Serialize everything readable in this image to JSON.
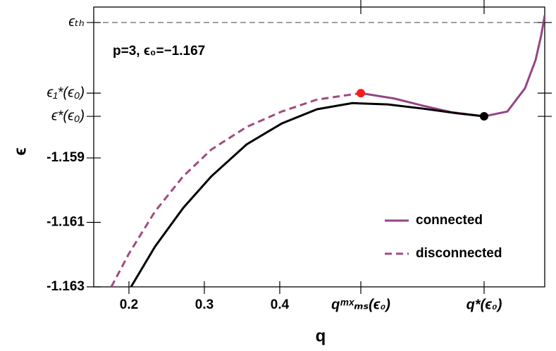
{
  "chart_data": {
    "type": "line",
    "annotation": "p=3, ϵ₀=−1.167",
    "x_label": "q",
    "y_label": "ϵ",
    "xlim": [
      0.1533,
      0.7514
    ],
    "ylim": [
      -1.163,
      -1.15432
    ],
    "xticks": [
      0.2,
      0.3,
      0.4,
      {
        "value": 0.5075,
        "label": "qᵐˣₘₛ(ϵ₀)"
      },
      {
        "value": 0.671,
        "label": "q*(ϵ₀)"
      }
    ],
    "yticks": [
      -1.163,
      -1.161,
      -1.159,
      {
        "value": -1.15771,
        "label": "ϵ*(ϵ₀)"
      },
      {
        "value": -1.15699,
        "label": "ϵ₁*(ϵ₀)"
      },
      {
        "value": -1.1548,
        "label": "ϵₜₕ"
      }
    ],
    "hline": -1.1548,
    "legend": "lower right",
    "series": [
      {
        "name": "connected",
        "color": "#934585",
        "dash": false,
        "x": [
          0.5075,
          0.5523,
          0.5897,
          0.6271,
          0.671,
          0.7019,
          0.7252,
          0.7393,
          0.7467,
          0.7514
        ],
        "values": [
          -1.15699,
          -1.15716,
          -1.15738,
          -1.15758,
          -1.15771,
          -1.15756,
          -1.15684,
          -1.15596,
          -1.1552,
          -1.15458
        ]
      },
      {
        "name": "disconnected",
        "color": "#a24a80",
        "dash": true,
        "x": [
          0.1766,
          0.2,
          0.2346,
          0.272,
          0.3093,
          0.3561,
          0.4028,
          0.4495,
          0.5075
        ],
        "values": [
          -1.163,
          -1.16197,
          -1.16066,
          -1.15957,
          -1.15874,
          -1.15804,
          -1.15756,
          -1.15719,
          -1.15699
        ]
      },
      {
        "color": "#000000",
        "dash": false,
        "x": [
          0.2028,
          0.2346,
          0.272,
          0.3093,
          0.3561,
          0.4028,
          0.4495,
          0.4963,
          0.543,
          0.5897,
          0.6364,
          0.671
        ],
        "values": [
          -1.163,
          -1.16175,
          -1.16055,
          -1.15957,
          -1.15858,
          -1.15793,
          -1.15749,
          -1.1573,
          -1.15734,
          -1.15747,
          -1.15762,
          -1.15771
        ]
      }
    ],
    "points": [
      {
        "x": 0.5075,
        "y": -1.15699,
        "color": "#ff1a1a"
      },
      {
        "x": 0.671,
        "y": -1.15771,
        "color": "#000000"
      }
    ]
  }
}
